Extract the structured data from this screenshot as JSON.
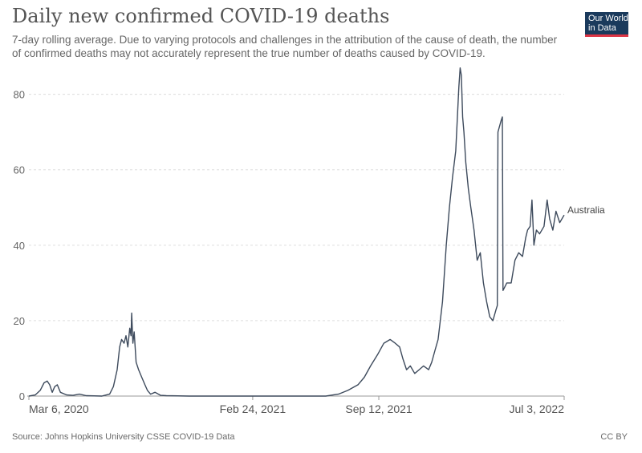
{
  "header": {
    "title": "Daily new confirmed COVID-19 deaths",
    "subtitle": "7-day rolling average. Due to varying protocols and challenges in the attribution of the cause of death, the number of confirmed deaths may not accurately represent the true number of deaths caused by COVID-19."
  },
  "logo": {
    "line1": "Our World",
    "line2": "in Data",
    "bg_color": "#1a3a5c",
    "accent_color": "#dc3545"
  },
  "footer": {
    "source": "Source: Johns Hopkins University CSSE COVID-19 Data",
    "license": "CC BY"
  },
  "chart_data": {
    "type": "line",
    "title": "Daily new confirmed COVID-19 deaths",
    "ylim": [
      0,
      88
    ],
    "yticks": [
      0,
      20,
      40,
      60,
      80
    ],
    "xlim": [
      "2020-03-06",
      "2022-07-03"
    ],
    "xtick_labels": [
      {
        "date": "2020-03-06",
        "label": "Mar 6, 2020"
      },
      {
        "date": "2021-02-24",
        "label": "Feb 24, 2021"
      },
      {
        "date": "2021-09-12",
        "label": "Sep 12, 2021"
      },
      {
        "date": "2022-07-03",
        "label": "Jul 3, 2022"
      }
    ],
    "grid": true,
    "line_color": "#3d4a5c",
    "series": [
      {
        "name": "Australia",
        "points": [
          [
            "2020-03-06",
            0
          ],
          [
            "2020-03-16",
            0.3
          ],
          [
            "2020-03-24",
            1.5
          ],
          [
            "2020-03-30",
            3.5
          ],
          [
            "2020-04-04",
            4
          ],
          [
            "2020-04-08",
            3
          ],
          [
            "2020-04-12",
            1
          ],
          [
            "2020-04-16",
            2.5
          ],
          [
            "2020-04-20",
            3
          ],
          [
            "2020-04-25",
            1
          ],
          [
            "2020-05-05",
            0.3
          ],
          [
            "2020-05-15",
            0.2
          ],
          [
            "2020-05-25",
            0.5
          ],
          [
            "2020-06-05",
            0.1
          ],
          [
            "2020-06-30",
            0
          ],
          [
            "2020-07-12",
            0.5
          ],
          [
            "2020-07-18",
            2.5
          ],
          [
            "2020-07-24",
            7
          ],
          [
            "2020-07-28",
            13
          ],
          [
            "2020-07-31",
            15
          ],
          [
            "2020-08-04",
            14
          ],
          [
            "2020-08-07",
            16
          ],
          [
            "2020-08-10",
            13
          ],
          [
            "2020-08-13",
            18
          ],
          [
            "2020-08-15",
            16
          ],
          [
            "2020-08-16",
            22
          ],
          [
            "2020-08-18",
            14
          ],
          [
            "2020-08-20",
            17
          ],
          [
            "2020-08-23",
            9
          ],
          [
            "2020-08-27",
            7
          ],
          [
            "2020-09-01",
            5
          ],
          [
            "2020-09-06",
            3
          ],
          [
            "2020-09-10",
            1.5
          ],
          [
            "2020-09-15",
            0.5
          ],
          [
            "2020-09-22",
            1
          ],
          [
            "2020-10-01",
            0.2
          ],
          [
            "2020-10-10",
            0.1
          ],
          [
            "2020-11-15",
            0
          ],
          [
            "2021-06-20",
            0
          ],
          [
            "2021-07-10",
            0.5
          ],
          [
            "2021-07-25",
            1.5
          ],
          [
            "2021-08-10",
            3
          ],
          [
            "2021-08-20",
            5
          ],
          [
            "2021-08-30",
            8
          ],
          [
            "2021-09-10",
            11
          ],
          [
            "2021-09-20",
            14
          ],
          [
            "2021-09-30",
            15
          ],
          [
            "2021-10-08",
            14
          ],
          [
            "2021-10-15",
            13
          ],
          [
            "2021-10-20",
            10
          ],
          [
            "2021-10-26",
            7
          ],
          [
            "2021-11-01",
            8
          ],
          [
            "2021-11-08",
            6
          ],
          [
            "2021-11-15",
            7
          ],
          [
            "2021-11-22",
            8
          ],
          [
            "2021-11-30",
            7
          ],
          [
            "2021-12-05",
            9
          ],
          [
            "2021-12-10",
            12
          ],
          [
            "2021-12-15",
            15
          ],
          [
            "2021-12-22",
            25
          ],
          [
            "2021-12-28",
            40
          ],
          [
            "2022-01-02",
            50
          ],
          [
            "2022-01-07",
            58
          ],
          [
            "2022-01-12",
            65
          ],
          [
            "2022-01-15",
            75
          ],
          [
            "2022-01-17",
            82
          ],
          [
            "2022-01-19",
            87
          ],
          [
            "2022-01-21",
            85
          ],
          [
            "2022-01-23",
            74
          ],
          [
            "2022-01-25",
            70
          ],
          [
            "2022-01-28",
            62
          ],
          [
            "2022-02-01",
            55
          ],
          [
            "2022-02-05",
            50
          ],
          [
            "2022-02-10",
            44
          ],
          [
            "2022-02-15",
            36
          ],
          [
            "2022-02-20",
            38
          ],
          [
            "2022-02-25",
            30
          ],
          [
            "2022-03-02",
            25
          ],
          [
            "2022-03-07",
            21
          ],
          [
            "2022-03-12",
            20
          ],
          [
            "2022-03-17",
            23
          ],
          [
            "2022-03-19",
            24
          ],
          [
            "2022-03-20",
            70
          ],
          [
            "2022-03-25",
            73
          ],
          [
            "2022-03-27",
            74
          ],
          [
            "2022-03-28",
            28
          ],
          [
            "2022-04-03",
            30
          ],
          [
            "2022-04-10",
            30
          ],
          [
            "2022-04-16",
            36
          ],
          [
            "2022-04-22",
            38
          ],
          [
            "2022-04-28",
            37
          ],
          [
            "2022-05-03",
            42
          ],
          [
            "2022-05-06",
            44
          ],
          [
            "2022-05-10",
            45
          ],
          [
            "2022-05-13",
            52
          ],
          [
            "2022-05-16",
            40
          ],
          [
            "2022-05-20",
            44
          ],
          [
            "2022-05-25",
            43
          ],
          [
            "2022-06-01",
            45
          ],
          [
            "2022-06-06",
            52
          ],
          [
            "2022-06-10",
            47
          ],
          [
            "2022-06-15",
            44
          ],
          [
            "2022-06-20",
            49
          ],
          [
            "2022-06-26",
            46
          ],
          [
            "2022-07-03",
            48
          ]
        ]
      }
    ]
  }
}
